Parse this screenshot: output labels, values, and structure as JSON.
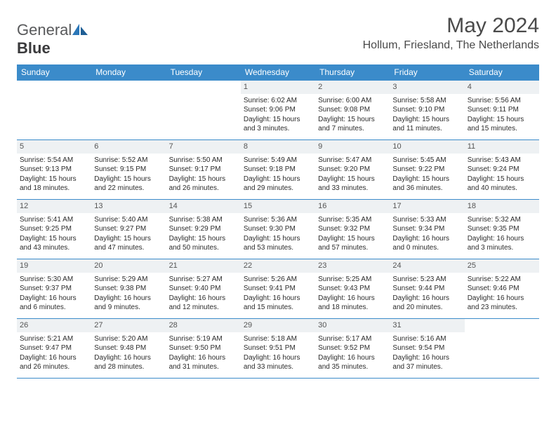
{
  "logo": {
    "word1": "General",
    "word2": "Blue"
  },
  "title": "May 2024",
  "location": "Hollum, Friesland, The Netherlands",
  "colors": {
    "header_bg": "#3b8bca",
    "header_text": "#ffffff",
    "daynum_bg": "#eef1f3",
    "border": "#3b8bca",
    "logo_gray": "#58595b",
    "logo_blue": "#2b77b8"
  },
  "day_headers": [
    "Sunday",
    "Monday",
    "Tuesday",
    "Wednesday",
    "Thursday",
    "Friday",
    "Saturday"
  ],
  "weeks": [
    [
      {},
      {},
      {},
      {
        "n": "1",
        "sr": "6:02 AM",
        "ss": "9:06 PM",
        "dl": "15 hours and 3 minutes."
      },
      {
        "n": "2",
        "sr": "6:00 AM",
        "ss": "9:08 PM",
        "dl": "15 hours and 7 minutes."
      },
      {
        "n": "3",
        "sr": "5:58 AM",
        "ss": "9:10 PM",
        "dl": "15 hours and 11 minutes."
      },
      {
        "n": "4",
        "sr": "5:56 AM",
        "ss": "9:11 PM",
        "dl": "15 hours and 15 minutes."
      }
    ],
    [
      {
        "n": "5",
        "sr": "5:54 AM",
        "ss": "9:13 PM",
        "dl": "15 hours and 18 minutes."
      },
      {
        "n": "6",
        "sr": "5:52 AM",
        "ss": "9:15 PM",
        "dl": "15 hours and 22 minutes."
      },
      {
        "n": "7",
        "sr": "5:50 AM",
        "ss": "9:17 PM",
        "dl": "15 hours and 26 minutes."
      },
      {
        "n": "8",
        "sr": "5:49 AM",
        "ss": "9:18 PM",
        "dl": "15 hours and 29 minutes."
      },
      {
        "n": "9",
        "sr": "5:47 AM",
        "ss": "9:20 PM",
        "dl": "15 hours and 33 minutes."
      },
      {
        "n": "10",
        "sr": "5:45 AM",
        "ss": "9:22 PM",
        "dl": "15 hours and 36 minutes."
      },
      {
        "n": "11",
        "sr": "5:43 AM",
        "ss": "9:24 PM",
        "dl": "15 hours and 40 minutes."
      }
    ],
    [
      {
        "n": "12",
        "sr": "5:41 AM",
        "ss": "9:25 PM",
        "dl": "15 hours and 43 minutes."
      },
      {
        "n": "13",
        "sr": "5:40 AM",
        "ss": "9:27 PM",
        "dl": "15 hours and 47 minutes."
      },
      {
        "n": "14",
        "sr": "5:38 AM",
        "ss": "9:29 PM",
        "dl": "15 hours and 50 minutes."
      },
      {
        "n": "15",
        "sr": "5:36 AM",
        "ss": "9:30 PM",
        "dl": "15 hours and 53 minutes."
      },
      {
        "n": "16",
        "sr": "5:35 AM",
        "ss": "9:32 PM",
        "dl": "15 hours and 57 minutes."
      },
      {
        "n": "17",
        "sr": "5:33 AM",
        "ss": "9:34 PM",
        "dl": "16 hours and 0 minutes."
      },
      {
        "n": "18",
        "sr": "5:32 AM",
        "ss": "9:35 PM",
        "dl": "16 hours and 3 minutes."
      }
    ],
    [
      {
        "n": "19",
        "sr": "5:30 AM",
        "ss": "9:37 PM",
        "dl": "16 hours and 6 minutes."
      },
      {
        "n": "20",
        "sr": "5:29 AM",
        "ss": "9:38 PM",
        "dl": "16 hours and 9 minutes."
      },
      {
        "n": "21",
        "sr": "5:27 AM",
        "ss": "9:40 PM",
        "dl": "16 hours and 12 minutes."
      },
      {
        "n": "22",
        "sr": "5:26 AM",
        "ss": "9:41 PM",
        "dl": "16 hours and 15 minutes."
      },
      {
        "n": "23",
        "sr": "5:25 AM",
        "ss": "9:43 PM",
        "dl": "16 hours and 18 minutes."
      },
      {
        "n": "24",
        "sr": "5:23 AM",
        "ss": "9:44 PM",
        "dl": "16 hours and 20 minutes."
      },
      {
        "n": "25",
        "sr": "5:22 AM",
        "ss": "9:46 PM",
        "dl": "16 hours and 23 minutes."
      }
    ],
    [
      {
        "n": "26",
        "sr": "5:21 AM",
        "ss": "9:47 PM",
        "dl": "16 hours and 26 minutes."
      },
      {
        "n": "27",
        "sr": "5:20 AM",
        "ss": "9:48 PM",
        "dl": "16 hours and 28 minutes."
      },
      {
        "n": "28",
        "sr": "5:19 AM",
        "ss": "9:50 PM",
        "dl": "16 hours and 31 minutes."
      },
      {
        "n": "29",
        "sr": "5:18 AM",
        "ss": "9:51 PM",
        "dl": "16 hours and 33 minutes."
      },
      {
        "n": "30",
        "sr": "5:17 AM",
        "ss": "9:52 PM",
        "dl": "16 hours and 35 minutes."
      },
      {
        "n": "31",
        "sr": "5:16 AM",
        "ss": "9:54 PM",
        "dl": "16 hours and 37 minutes."
      },
      {}
    ]
  ],
  "labels": {
    "sunrise": "Sunrise:",
    "sunset": "Sunset:",
    "daylight": "Daylight:"
  }
}
